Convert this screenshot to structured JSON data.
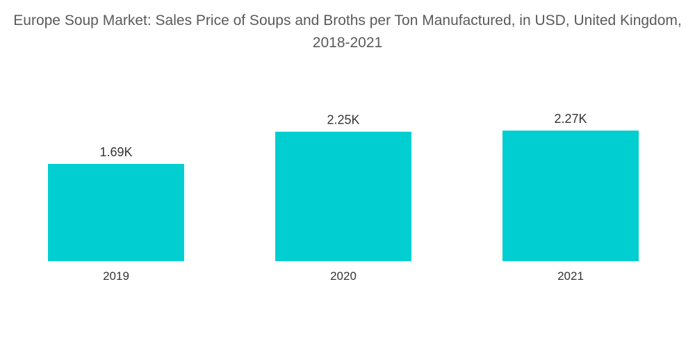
{
  "chart_data": {
    "type": "bar",
    "title": "Europe Soup Market: Sales Price of Soups and Broths per Ton Manufactured, in USD, United Kingdom, 2018-2021",
    "categories": [
      "2019",
      "2020",
      "2021"
    ],
    "values": [
      1690,
      2250,
      2270
    ],
    "data_labels": [
      "1.69K",
      "2.25K",
      "2.27K"
    ],
    "xlabel": "",
    "ylabel": "",
    "ylim": [
      0,
      2270
    ],
    "grid": false,
    "legend": "none",
    "colors": {
      "bar": "#00CED1",
      "label_text": "#333333",
      "title_text": "#5a5a5a"
    }
  }
}
